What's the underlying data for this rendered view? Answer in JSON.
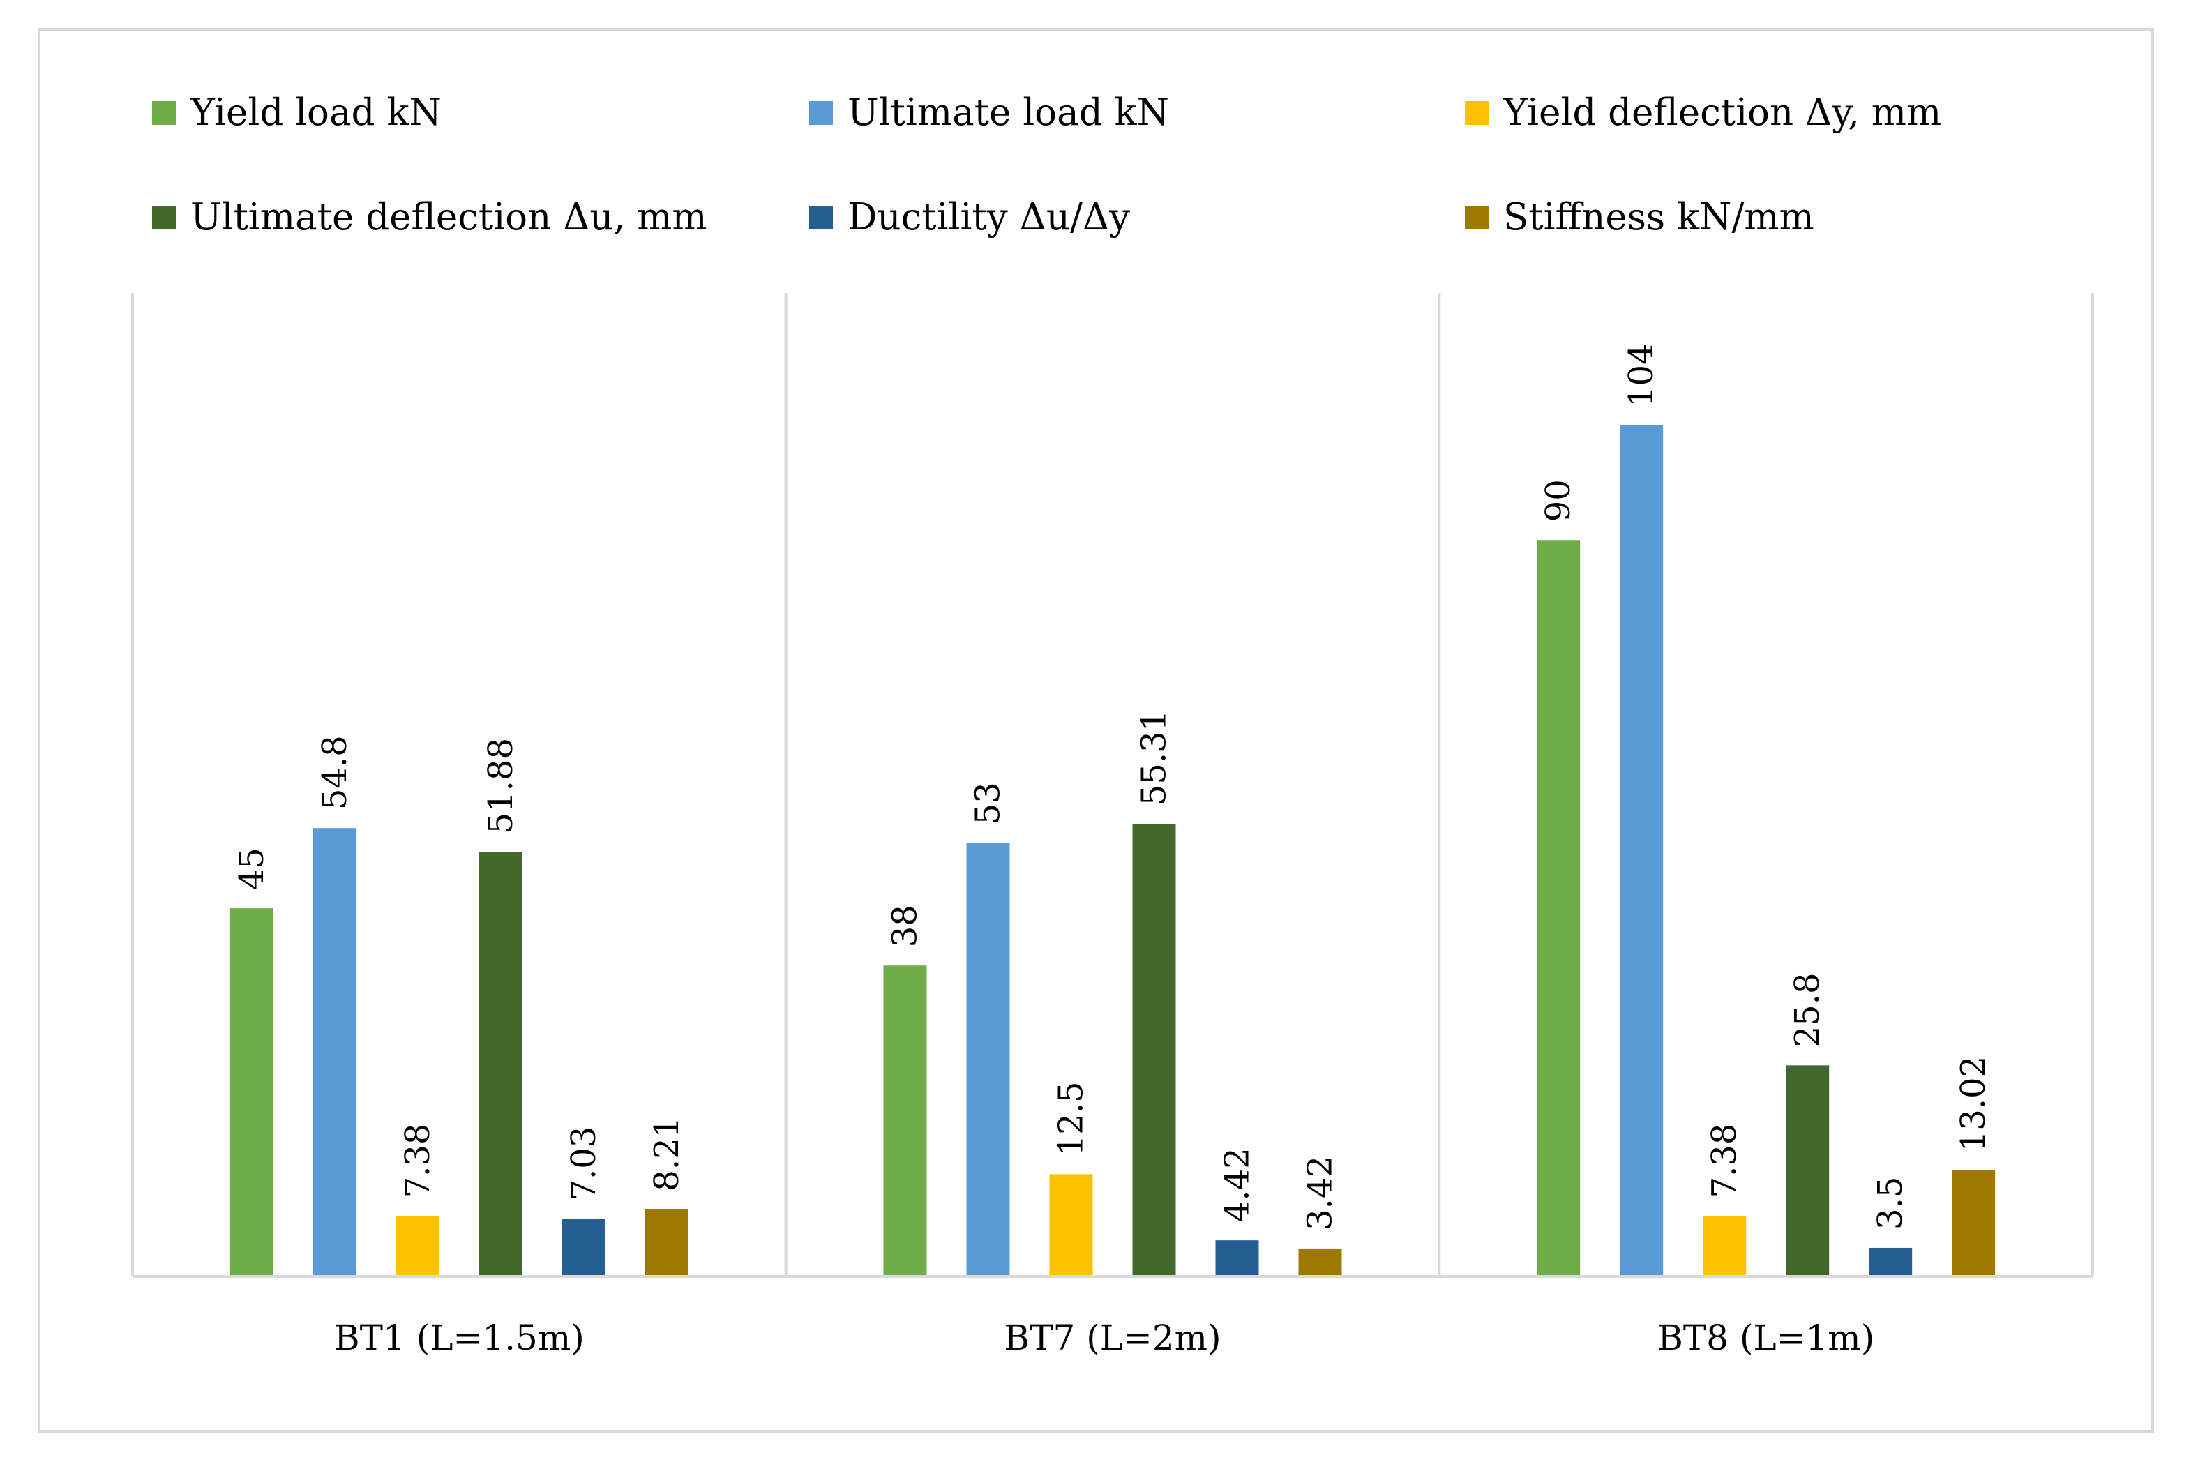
{
  "chart_data": {
    "type": "bar",
    "title": "",
    "xlabel": "",
    "ylabel": "",
    "ylim": [
      0,
      140
    ],
    "grid": false,
    "legend_position": "top",
    "categories": [
      "BT1 (L=1.5m)",
      "BT7 (L=2m)",
      "BT8 (L=1m)"
    ],
    "series": [
      {
        "name": "Yield load kN",
        "color": "#70ad47",
        "values": [
          45,
          38,
          90
        ]
      },
      {
        "name": "Ultimate load kN",
        "color": "#5b9bd5",
        "values": [
          54.8,
          53,
          104
        ]
      },
      {
        "name": "Yield deflection Δy, mm",
        "color": "#ffc000",
        "values": [
          7.38,
          12.5,
          7.38
        ]
      },
      {
        "name": "Ultimate deflection Δu, mm",
        "color": "#43682b",
        "values": [
          51.88,
          55.31,
          25.8
        ]
      },
      {
        "name": "Ductility Δu/Δy",
        "color": "#255e91",
        "values": [
          7.03,
          4.42,
          3.5
        ]
      },
      {
        "name": "Stiffness kN/mm",
        "color": "#9e7900",
        "values": [
          8.21,
          3.42,
          13.02
        ]
      }
    ]
  }
}
